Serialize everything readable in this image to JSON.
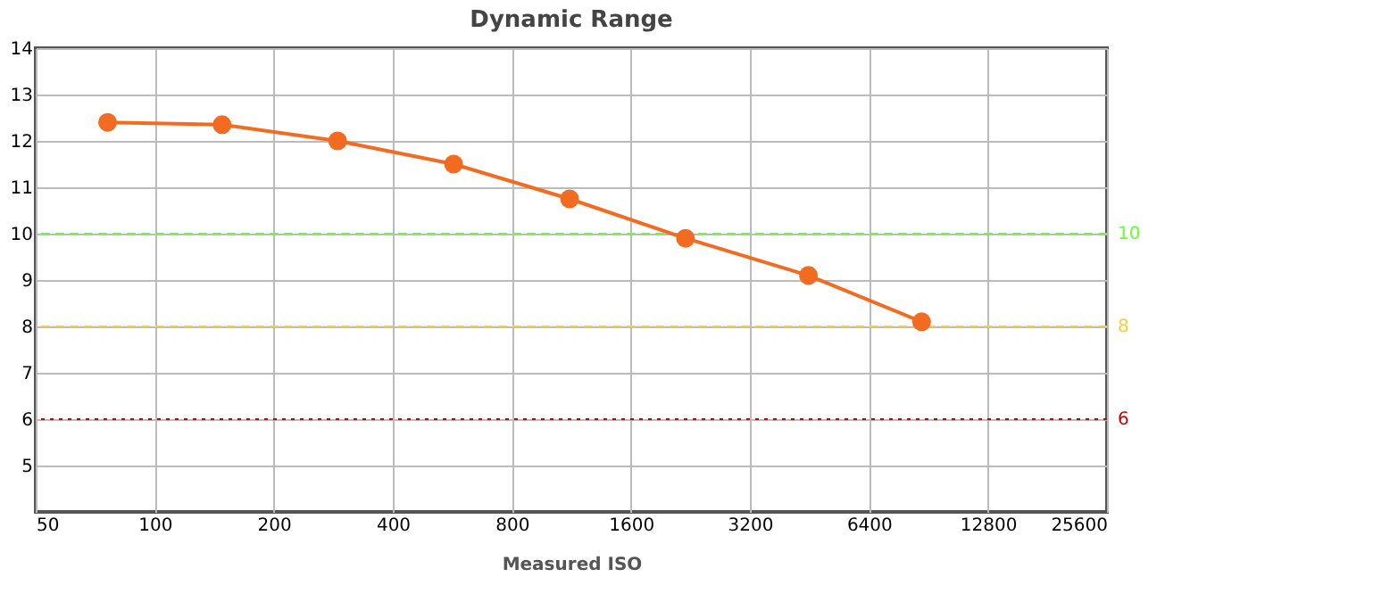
{
  "chart_data": {
    "type": "line",
    "title": "Dynamic Range",
    "xlabel": "Measured ISO",
    "x": [
      76,
      148,
      290,
      570,
      1120,
      2200,
      4500,
      8700
    ],
    "series": [
      {
        "color": "#f26b21",
        "values": [
          12.4,
          12.35,
          12.0,
          11.5,
          10.75,
          9.9,
          9.1,
          8.1
        ]
      }
    ],
    "log": "x",
    "xlim": [
      50,
      25600
    ],
    "xticks": [
      50,
      100,
      200,
      400,
      800,
      1600,
      3200,
      6400,
      12800,
      25600
    ],
    "ylim": [
      4,
      14
    ],
    "yticks": [
      5,
      6,
      7,
      8,
      9,
      10,
      11,
      12,
      13,
      14
    ],
    "ref_lines": [
      {
        "axis": "y",
        "value": 10,
        "label": "10",
        "color": "#66ff33",
        "line_style": "dashed"
      },
      {
        "axis": "y",
        "value": 8,
        "label": "8",
        "color": "#ffcc33",
        "line_style": "dashed"
      },
      {
        "axis": "y",
        "value": 6,
        "label": "6",
        "color": "#cc0000",
        "line_style": "dotted"
      }
    ],
    "grid": true,
    "marker": "circle",
    "line_style": "solid"
  }
}
